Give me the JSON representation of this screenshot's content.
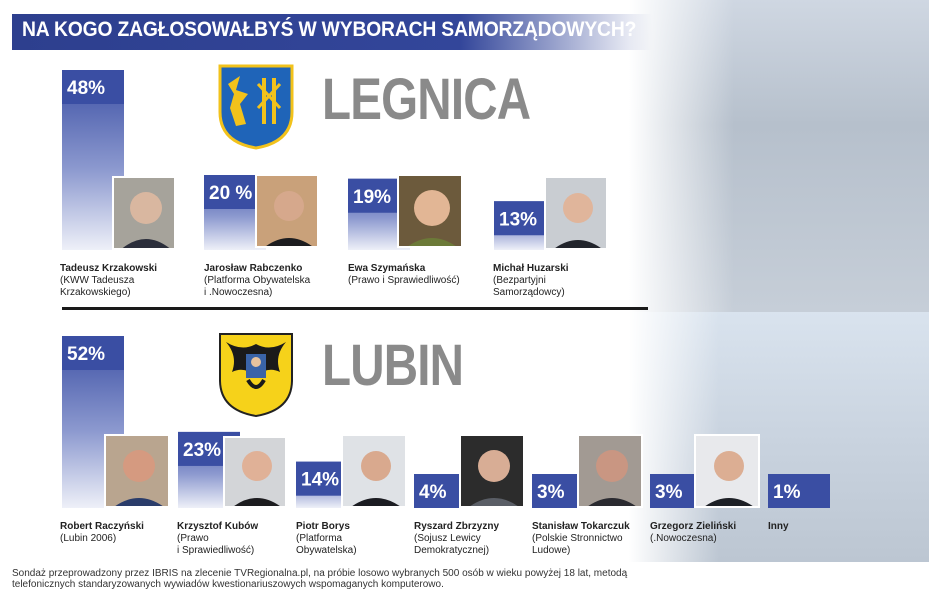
{
  "header": {
    "title": "NA KOGO ZAGŁOSOWAŁBYŚ W WYBORACH SAMORZĄDOWYCH?"
  },
  "colors": {
    "bar": "#3a4ea3",
    "header": "#2d3f8e",
    "city": "#8a8a8a"
  },
  "chart_data": [
    {
      "type": "bar",
      "title": "LEGNICA",
      "ylim": [
        0,
        48
      ],
      "categories": [
        "Tadeusz Krzakowski",
        "Jarosław Rabczenko",
        "Ewa Szymańska",
        "Michał Huzarski"
      ],
      "values": [
        48,
        20,
        19,
        13
      ],
      "value_labels": [
        "48%",
        "20 %",
        "19%",
        "13%"
      ],
      "parties": [
        "(KWW Tadeusza\nKrzakowskiego)",
        "(Platforma Obywatelska\ni .Nowoczesna)",
        "(Prawo i Sprawiedliwość)",
        "(Bezpartyjni\nSamorządowcy)"
      ]
    },
    {
      "type": "bar",
      "title": "LUBIN",
      "ylim": [
        0,
        52
      ],
      "categories": [
        "Robert Raczyński",
        "Krzysztof Kubów",
        "Piotr Borys",
        "Ryszard Zbrzyzny",
        "Stanisław Tokarczuk",
        "Grzegorz Zieliński",
        "Inny"
      ],
      "values": [
        52,
        23,
        14,
        4,
        3,
        3,
        1
      ],
      "value_labels": [
        "52%",
        "23%",
        "14%",
        "4%",
        "3%",
        "3%",
        "1%"
      ],
      "parties": [
        "(Lubin 2006)",
        "(Prawo\ni Sprawiedliwość)",
        "(Platforma\nObywatelska)",
        "(Sojusz Lewicy\nDemokratycznej)",
        "(Polskie Stronnictwo\nLudowe)",
        "(.Nowoczesna)",
        ""
      ]
    }
  ],
  "footnote": "Sondaż przeprowadzony przez IBRIS na zlecenie TVRegionalna.pl, na próbie losowo wybranych 500 osób w wieku powyżej 18 lat, metodą telefonicznych standaryzowanych wywiadów kwestionariuszowych wspomaganych komputerowo."
}
